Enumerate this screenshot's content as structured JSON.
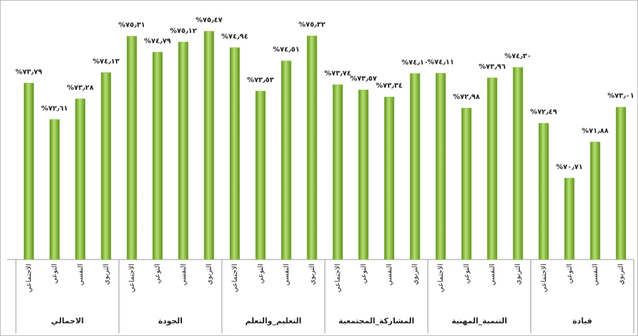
{
  "chart_data": {
    "type": "bar",
    "groups": [
      "الاجمالي",
      "الجودة",
      "التعليم_والتعلم",
      "المشاركة_المجتمعية",
      "التنمية_المهنية",
      "قيادة"
    ],
    "categories": [
      "الاجتماعي",
      "النوعي",
      "النفسي",
      "التربوي",
      "الاجتماعي",
      "النوعي",
      "النفسي",
      "التربوي",
      "الاجتماعي",
      "النوعي",
      "النفسي",
      "التربوي",
      "الاجتماعي",
      "النوعي",
      "النفسي",
      "التربوي",
      "الاجتماعي",
      "النوعي",
      "النفسي",
      "التربوي",
      "الاجتماعي",
      "النوعي",
      "النفسي",
      "التربوي"
    ],
    "values": [
      73.79,
      72.61,
      73.28,
      74.13,
      75.31,
      74.79,
      75.12,
      75.47,
      74.94,
      73.53,
      74.51,
      75.32,
      73.74,
      73.57,
      73.34,
      74.1,
      74.11,
      72.98,
      73.96,
      74.3,
      72.49,
      70.71,
      71.88,
      73.01
    ],
    "value_labels": [
      "%٧٣٫٧٩",
      "%٧٢٫٦١",
      "%٧٣٫٢٨",
      "%٧٤٫١٣",
      "%٧٥٫٣١",
      "%٧٤٫٧٩",
      "%٧٥٫١٢",
      "%٧٥٫٤٧",
      "%٧٤٫٩٤",
      "%٧٣٫٥٣",
      "%٧٤٫٥١",
      "%٧٥٫٣٢",
      "%٧٣٫٧٤",
      "%٧٣٫٥٧",
      "%٧٣٫٣٤",
      "%٧٤٫١٠",
      "%٧٤٫١١",
      "%٧٢٫٩٨",
      "%٧٣٫٩٦",
      "%٧٤٫٣٠",
      "%٧٢٫٤٩",
      "%٧٠٫٧١",
      "%٧١٫٨٨",
      "%٧٣٫٠١"
    ],
    "color": "#8cc63f",
    "ylim": [
      68.07,
      76.3
    ]
  }
}
